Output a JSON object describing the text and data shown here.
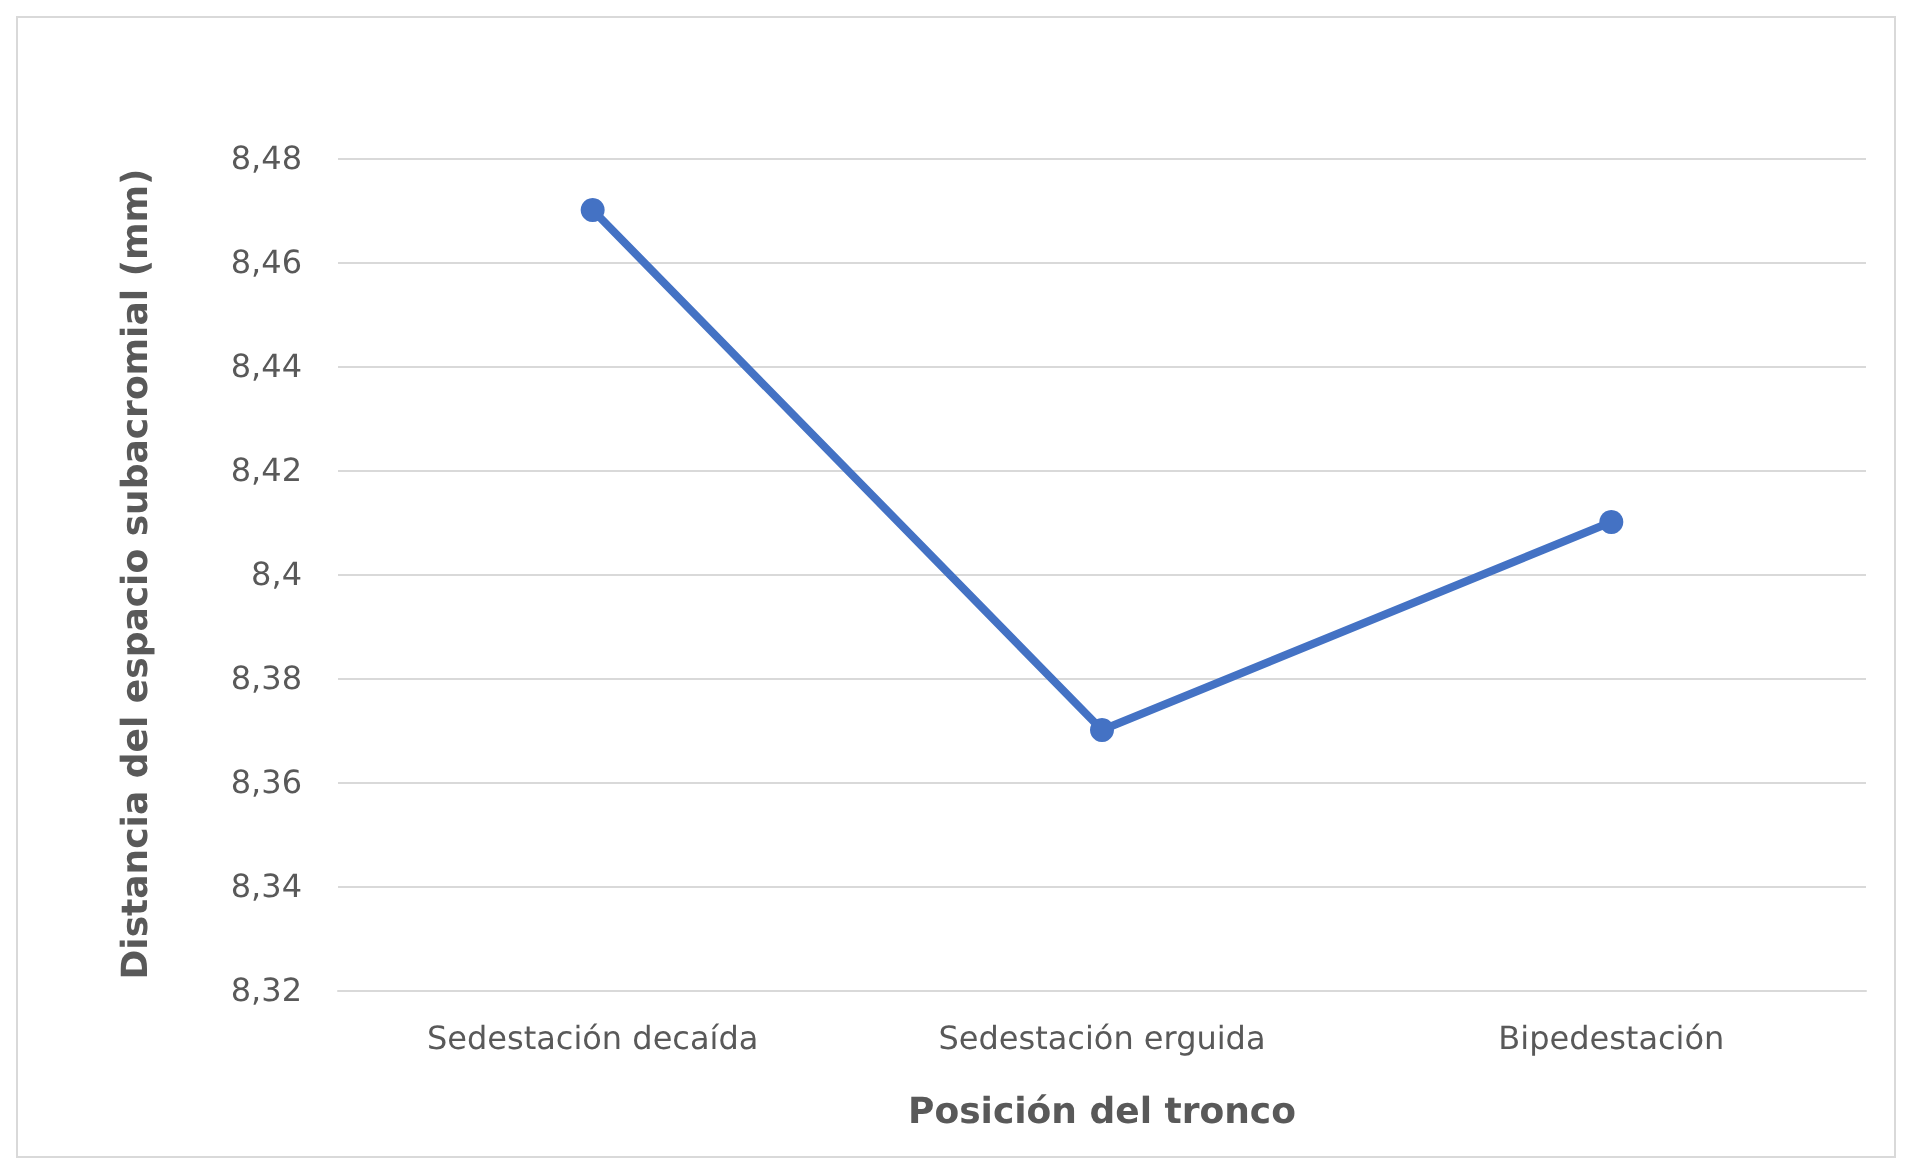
{
  "chart_data": {
    "type": "line",
    "xlabel": "Posición del tronco",
    "ylabel": "Distancia del espacio subacromial (mm)",
    "categories": [
      "Sedestación decaída",
      "Sedestación erguida",
      "Bipedestación"
    ],
    "series": [
      {
        "color": "#4472c4",
        "values": [
          8.47,
          8.37,
          8.41
        ]
      }
    ],
    "ylim": [
      8.32,
      8.48
    ],
    "yticks": [
      {
        "value": 8.32,
        "label": "8,32"
      },
      {
        "value": 8.34,
        "label": "8,34"
      },
      {
        "value": 8.36,
        "label": "8,36"
      },
      {
        "value": 8.38,
        "label": "8,38"
      },
      {
        "value": 8.4,
        "label": "8,4"
      },
      {
        "value": 8.42,
        "label": "8,42"
      },
      {
        "value": 8.44,
        "label": "8,44"
      },
      {
        "value": 8.46,
        "label": "8,46"
      },
      {
        "value": 8.48,
        "label": "8,48"
      }
    ],
    "grid": "y",
    "marker": "circle",
    "line_style": "solid"
  }
}
